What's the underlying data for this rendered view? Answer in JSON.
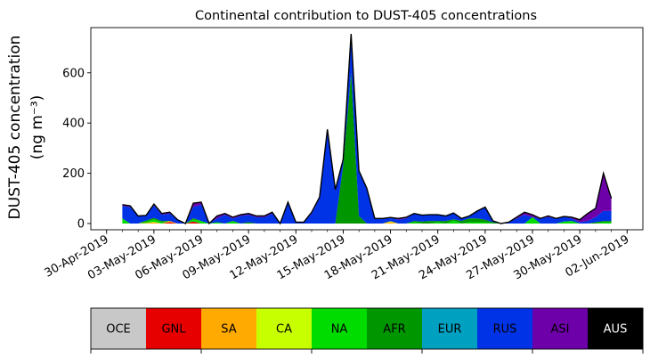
{
  "chart_data": {
    "type": "area",
    "title": "Continental contribution to DUST-405 concentrations",
    "ylabel_line1": "DUST-405 concentration",
    "ylabel_line2": "(ng m⁻³)",
    "xlabel": "",
    "xlim_days_label": [
      "30-Apr-2019",
      "02-Jun-2019"
    ],
    "ylim": [
      -25,
      780
    ],
    "yticks": [
      0,
      200,
      400,
      600
    ],
    "xticks": [
      "30-Apr-2019",
      "03-May-2019",
      "06-May-2019",
      "09-May-2019",
      "12-May-2019",
      "15-May-2019",
      "18-May-2019",
      "21-May-2019",
      "24-May-2019",
      "27-May-2019",
      "30-May-2019",
      "02-Jun-2019"
    ],
    "x": [
      "2019-05-01",
      "2019-05-01 12:00",
      "2019-05-02",
      "2019-05-02 12:00",
      "2019-05-03",
      "2019-05-03 12:00",
      "2019-05-04",
      "2019-05-04 12:00",
      "2019-05-05",
      "2019-05-05 12:00",
      "2019-05-06",
      "2019-05-06 12:00",
      "2019-05-07",
      "2019-05-07 12:00",
      "2019-05-08",
      "2019-05-08 12:00",
      "2019-05-09",
      "2019-05-09 12:00",
      "2019-05-10",
      "2019-05-10 12:00",
      "2019-05-11",
      "2019-05-11 12:00",
      "2019-05-12",
      "2019-05-12 12:00",
      "2019-05-13",
      "2019-05-13 12:00",
      "2019-05-14",
      "2019-05-14 12:00",
      "2019-05-15",
      "2019-05-15 12:00",
      "2019-05-16",
      "2019-05-16 12:00",
      "2019-05-17",
      "2019-05-17 12:00",
      "2019-05-18",
      "2019-05-18 12:00",
      "2019-05-19",
      "2019-05-19 12:00",
      "2019-05-20",
      "2019-05-20 12:00",
      "2019-05-21",
      "2019-05-21 12:00",
      "2019-05-22",
      "2019-05-22 12:00",
      "2019-05-23",
      "2019-05-23 12:00",
      "2019-05-24",
      "2019-05-24 12:00",
      "2019-05-25",
      "2019-05-25 12:00",
      "2019-05-26",
      "2019-05-26 12:00",
      "2019-05-27",
      "2019-05-27 12:00",
      "2019-05-28",
      "2019-05-28 12:00",
      "2019-05-29",
      "2019-05-29 12:00",
      "2019-05-30",
      "2019-05-30 12:00",
      "2019-05-31",
      "2019-05-31 12:00",
      "2019-06-01"
    ],
    "series": [
      {
        "name": "OCE",
        "color": "#c8c8c8",
        "values": [
          0,
          0,
          0,
          0,
          0,
          0,
          0,
          0,
          0,
          0,
          0,
          0,
          0,
          0,
          0,
          0,
          0,
          0,
          0,
          0,
          0,
          0,
          0,
          0,
          0,
          0,
          0,
          0,
          0,
          0,
          0,
          0,
          0,
          0,
          0,
          0,
          0,
          0,
          0,
          0,
          0,
          0,
          0,
          0,
          0,
          0,
          0,
          0,
          0,
          0,
          0,
          0,
          0,
          0,
          0,
          0,
          0,
          0,
          0,
          0,
          0,
          0,
          0
        ]
      },
      {
        "name": "GNL",
        "color": "#e60000",
        "values": [
          0,
          0,
          0,
          0,
          0,
          0,
          5,
          0,
          0,
          8,
          0,
          0,
          0,
          0,
          0,
          0,
          0,
          0,
          0,
          0,
          0,
          0,
          0,
          0,
          0,
          0,
          0,
          0,
          0,
          0,
          0,
          0,
          0,
          0,
          0,
          0,
          0,
          0,
          0,
          0,
          0,
          0,
          0,
          0,
          0,
          0,
          0,
          0,
          0,
          0,
          0,
          0,
          0,
          0,
          0,
          0,
          0,
          0,
          0,
          0,
          0,
          0,
          0
        ]
      },
      {
        "name": "SA",
        "color": "#ffaa00",
        "values": [
          0,
          0,
          0,
          2,
          5,
          0,
          5,
          0,
          0,
          0,
          0,
          0,
          0,
          0,
          0,
          0,
          0,
          0,
          0,
          0,
          0,
          0,
          0,
          0,
          0,
          0,
          0,
          0,
          0,
          0,
          0,
          0,
          0,
          0,
          6,
          0,
          0,
          0,
          0,
          0,
          0,
          0,
          0,
          0,
          0,
          0,
          0,
          0,
          0,
          0,
          0,
          0,
          0,
          0,
          0,
          0,
          0,
          0,
          0,
          0,
          0,
          0,
          0
        ]
      },
      {
        "name": "CA",
        "color": "#c8ff00",
        "values": [
          0,
          0,
          0,
          0,
          2,
          0,
          0,
          0,
          0,
          0,
          0,
          0,
          0,
          0,
          0,
          0,
          0,
          0,
          0,
          0,
          0,
          0,
          0,
          0,
          0,
          0,
          0,
          0,
          0,
          0,
          0,
          0,
          0,
          0,
          3,
          0,
          0,
          0,
          0,
          0,
          0,
          0,
          0,
          0,
          0,
          0,
          0,
          0,
          0,
          0,
          0,
          0,
          0,
          0,
          0,
          0,
          0,
          0,
          0,
          0,
          0,
          0,
          0
        ]
      },
      {
        "name": "NA",
        "color": "#00dc00",
        "values": [
          20,
          0,
          0,
          5,
          10,
          5,
          0,
          0,
          0,
          8,
          10,
          0,
          5,
          0,
          10,
          0,
          0,
          0,
          0,
          0,
          0,
          0,
          0,
          0,
          0,
          0,
          0,
          0,
          0,
          0,
          0,
          0,
          0,
          0,
          0,
          0,
          0,
          5,
          0,
          0,
          5,
          0,
          12,
          0,
          5,
          5,
          5,
          0,
          0,
          0,
          0,
          0,
          25,
          0,
          0,
          0,
          8,
          10,
          0,
          0,
          0,
          5,
          5
        ]
      },
      {
        "name": "AFR",
        "color": "#009600",
        "values": [
          0,
          0,
          0,
          5,
          5,
          5,
          0,
          0,
          0,
          5,
          0,
          0,
          0,
          0,
          0,
          0,
          5,
          0,
          0,
          0,
          0,
          0,
          0,
          0,
          0,
          0,
          0,
          0,
          230,
          600,
          30,
          0,
          0,
          0,
          0,
          0,
          0,
          5,
          8,
          10,
          5,
          10,
          5,
          10,
          15,
          15,
          10,
          5,
          0,
          0,
          0,
          0,
          0,
          0,
          0,
          0,
          0,
          0,
          0,
          0,
          5,
          5,
          5
        ]
      },
      {
        "name": "EUR",
        "color": "#00a0c0",
        "values": [
          0,
          0,
          0,
          0,
          0,
          0,
          0,
          0,
          0,
          0,
          0,
          0,
          0,
          0,
          0,
          0,
          0,
          0,
          0,
          0,
          0,
          0,
          0,
          0,
          0,
          0,
          0,
          0,
          0,
          0,
          0,
          0,
          0,
          0,
          0,
          0,
          0,
          0,
          0,
          0,
          0,
          0,
          0,
          0,
          0,
          0,
          0,
          0,
          0,
          0,
          0,
          0,
          0,
          0,
          0,
          0,
          0,
          0,
          0,
          0,
          0,
          0,
          0
        ]
      },
      {
        "name": "RUS",
        "color": "#0032e6",
        "values": [
          50,
          65,
          30,
          20,
          50,
          25,
          30,
          15,
          0,
          45,
          65,
          0,
          15,
          35,
          10,
          30,
          30,
          25,
          25,
          40,
          0,
          80,
          5,
          5,
          40,
          100,
          370,
          130,
          20,
          150,
          180,
          140,
          20,
          20,
          15,
          15,
          20,
          30,
          25,
          25,
          25,
          20,
          25,
          10,
          10,
          30,
          50,
          5,
          0,
          5,
          20,
          35,
          0,
          20,
          25,
          20,
          20,
          10,
          5,
          10,
          20,
          40,
          40
        ]
      },
      {
        "name": "ASI",
        "color": "#6e00aa",
        "values": [
          5,
          5,
          0,
          0,
          5,
          5,
          5,
          0,
          0,
          15,
          10,
          0,
          10,
          5,
          5,
          5,
          5,
          5,
          5,
          5,
          0,
          5,
          0,
          0,
          5,
          5,
          5,
          5,
          5,
          5,
          0,
          0,
          0,
          0,
          0,
          5,
          5,
          0,
          0,
          0,
          0,
          0,
          0,
          0,
          0,
          0,
          0,
          0,
          0,
          0,
          5,
          10,
          10,
          0,
          5,
          0,
          0,
          5,
          10,
          30,
          35,
          150,
          50
        ]
      },
      {
        "name": "AUS",
        "color": "#000000",
        "values": [
          0,
          0,
          0,
          0,
          0,
          0,
          0,
          0,
          0,
          0,
          0,
          0,
          0,
          0,
          0,
          0,
          0,
          0,
          0,
          0,
          0,
          0,
          0,
          0,
          0,
          0,
          0,
          0,
          0,
          0,
          0,
          0,
          0,
          0,
          0,
          0,
          0,
          0,
          0,
          0,
          0,
          0,
          0,
          0,
          0,
          0,
          0,
          0,
          0,
          0,
          0,
          0,
          0,
          0,
          0,
          0,
          0,
          0,
          0,
          0,
          0,
          0,
          0
        ]
      }
    ],
    "legend_labels": [
      "OCE",
      "GNL",
      "SA",
      "CA",
      "NA",
      "AFR",
      "EUR",
      "RUS",
      "ASI",
      "AUS"
    ],
    "legend_text_colors": [
      "#000000",
      "#000000",
      "#000000",
      "#000000",
      "#000000",
      "#000000",
      "#000000",
      "#000000",
      "#000000",
      "#ffffff"
    ],
    "grid": false,
    "legend_placement": "bottom colorbar"
  }
}
